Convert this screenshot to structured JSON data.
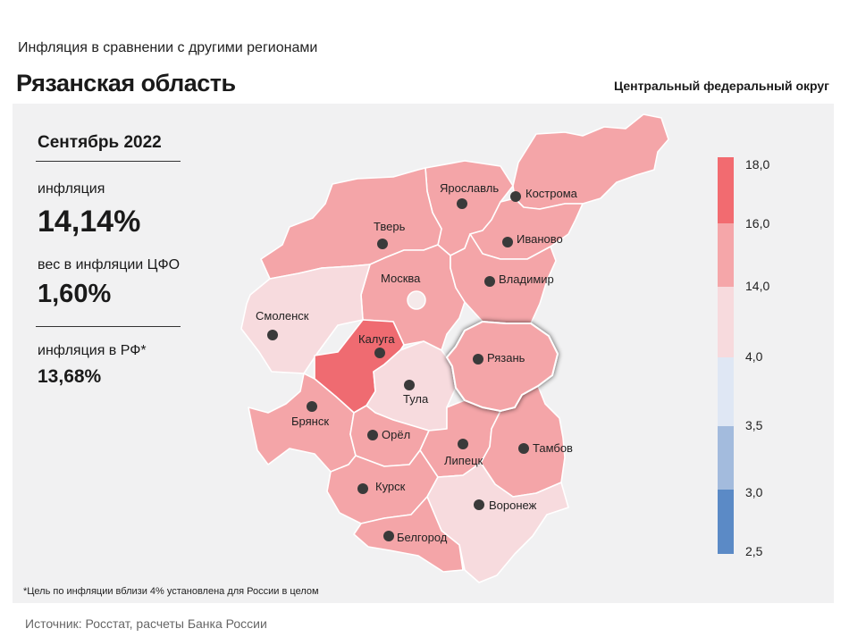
{
  "header": {
    "subtitle": "Инфляция в сравнении с другими регионами",
    "title": "Рязанская область",
    "district": "Центральный федеральный округ"
  },
  "stats": {
    "period": "Сентябрь 2022",
    "inflation_label": "инфляция",
    "inflation_value": "14,14%",
    "weight_label": "вес в инфляции ЦФО",
    "weight_value": "1,60%",
    "rf_label": "инфляция в РФ*",
    "rf_value": "13,68%"
  },
  "map": {
    "regions": [
      {
        "name": "Ярославль",
        "band": "14-16",
        "color": "#f4a5a8"
      },
      {
        "name": "Кострома",
        "band": "14-16",
        "color": "#f4a5a8"
      },
      {
        "name": "Тверь",
        "band": "14-16",
        "color": "#f4a5a8"
      },
      {
        "name": "Иваново",
        "band": "14-16",
        "color": "#f4a5a8"
      },
      {
        "name": "Москва",
        "band": "14-16",
        "color": "#f4a5a8"
      },
      {
        "name": "Владимир",
        "band": "14-16",
        "color": "#f4a5a8"
      },
      {
        "name": "Смоленск",
        "band": "4-14",
        "color": "#f7dbde"
      },
      {
        "name": "Калуга",
        "band": "16-18",
        "color": "#ef6b71"
      },
      {
        "name": "Рязань",
        "band": "14-16",
        "color": "#f4a5a8",
        "highlighted": true
      },
      {
        "name": "Тула",
        "band": "4-14",
        "color": "#f7dbde"
      },
      {
        "name": "Брянск",
        "band": "14-16",
        "color": "#f4a5a8"
      },
      {
        "name": "Орёл",
        "band": "14-16",
        "color": "#f4a5a8"
      },
      {
        "name": "Липецк",
        "band": "14-16",
        "color": "#f4a5a8"
      },
      {
        "name": "Тамбов",
        "band": "14-16",
        "color": "#f4a5a8"
      },
      {
        "name": "Курск",
        "band": "14-16",
        "color": "#f4a5a8"
      },
      {
        "name": "Воронеж",
        "band": "4-14",
        "color": "#f7dbde"
      },
      {
        "name": "Белгород",
        "band": "14-16",
        "color": "#f4a5a8"
      }
    ]
  },
  "legend": {
    "ticks": [
      "18,0",
      "16,0",
      "14,0",
      "4,0",
      "3,5",
      "3,0",
      "2,5"
    ],
    "colors": [
      "#f26b70",
      "#f5a6a9",
      "#f7dadd",
      "#dfe7f4",
      "#a3bbdd",
      "#5b8ac6"
    ]
  },
  "footnote": "*Цель по инфляции вблизи 4% установлена для России в целом",
  "source": "Источник: Росстат, расчеты Банка России"
}
